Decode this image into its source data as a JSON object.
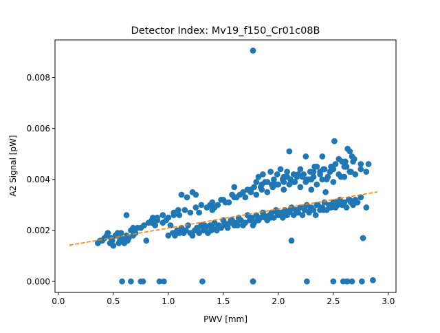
{
  "colors": {
    "points": "#1f77b4",
    "fit_line": "#ff7f0e",
    "axes": "#000000",
    "background": "#ffffff"
  },
  "chart_data": {
    "type": "scatter",
    "title": "Detector Index: Mv19_f150_Cr01c08B",
    "xlabel": "PWV [mm]",
    "ylabel": "A2 Signal [pW]",
    "xlim": [
      -0.03,
      3.07
    ],
    "ylim": [
      -0.00043,
      0.00947
    ],
    "x_ticks": [
      0.0,
      0.5,
      1.0,
      1.5,
      2.0,
      2.5,
      3.0
    ],
    "x_tick_labels": [
      "0.0",
      "0.5",
      "1.0",
      "1.5",
      "2.0",
      "2.5",
      "3.0"
    ],
    "y_ticks": [
      0.0,
      0.002,
      0.004,
      0.006,
      0.008
    ],
    "y_tick_labels": [
      "0.000",
      "0.002",
      "0.004",
      "0.006",
      "0.008"
    ],
    "grid": false,
    "series": [
      {
        "name": "A2 signal",
        "kind": "scatter",
        "x": [
          0.36,
          0.38,
          0.42,
          0.44,
          0.47,
          0.49,
          0.52,
          0.54,
          0.56,
          0.58,
          0.6,
          0.62,
          0.64,
          0.66,
          0.68,
          0.7,
          0.72,
          0.45,
          0.5,
          0.55,
          0.63,
          0.4,
          0.48,
          0.57,
          0.53,
          0.61,
          0.75,
          0.78,
          0.82,
          0.85,
          0.88,
          0.9,
          0.95,
          0.98,
          1.02,
          1.04,
          1.06,
          1.08,
          1.1,
          1.12,
          1.14,
          1.16,
          1.18,
          1.2,
          1.22,
          1.24,
          1.26,
          1.28,
          1.3,
          1.32,
          1.34,
          1.36,
          1.38,
          1.4,
          1.42,
          1.44,
          1.46,
          1.48,
          1.5,
          1.52,
          1.54,
          1.56,
          1.58,
          1.6,
          1.62,
          1.64,
          1.66,
          1.68,
          1.7,
          1.72,
          1.74,
          1.76,
          1.78,
          1.8,
          1.82,
          1.84,
          1.86,
          1.88,
          1.9,
          1.92,
          1.94,
          1.96,
          1.98,
          2.0,
          2.02,
          2.04,
          2.06,
          2.08,
          2.1,
          2.12,
          2.14,
          2.16,
          2.18,
          2.2,
          2.22,
          2.24,
          2.26,
          2.28,
          2.3,
          2.32,
          2.34,
          2.36,
          2.38,
          2.4,
          2.42,
          2.44,
          2.46,
          2.48,
          2.5,
          2.52,
          2.54,
          2.56,
          2.58,
          2.6,
          2.62,
          2.64,
          2.66,
          2.68,
          2.7,
          2.72,
          2.75,
          2.8,
          1.15,
          1.21,
          1.27,
          1.33,
          1.39,
          1.45,
          1.51,
          1.57,
          1.63,
          1.69,
          1.75,
          1.81,
          1.87,
          1.93,
          1.99,
          2.05,
          2.11,
          2.17,
          2.23,
          2.29,
          2.35,
          2.41,
          2.47,
          2.53,
          2.59,
          2.65,
          2.71,
          0.85,
          0.9,
          0.95,
          1.0,
          1.05,
          1.1,
          1.15,
          1.2,
          1.25,
          1.3,
          1.35,
          1.4,
          1.45,
          1.5,
          1.55,
          1.6,
          1.65,
          1.7,
          1.75,
          1.8,
          1.85,
          1.9,
          1.95,
          2.0,
          2.05,
          2.1,
          2.15,
          2.2,
          2.25,
          2.3,
          2.35,
          2.4,
          2.45,
          2.5,
          2.55,
          2.6,
          2.65,
          2.7,
          2.75,
          2.8,
          1.8,
          1.82,
          1.86,
          1.9,
          1.93,
          1.96,
          1.99,
          2.02,
          2.05,
          2.08,
          2.11,
          2.14,
          2.17,
          2.2,
          2.23,
          2.26,
          2.29,
          2.32,
          2.35,
          2.38,
          2.41,
          2.44,
          2.47,
          1.12,
          1.17,
          1.22,
          1.42,
          1.52,
          1.62,
          1.72,
          1.84,
          1.94,
          2.04,
          2.14,
          2.22,
          2.32,
          2.42,
          2.52,
          2.62,
          2.68,
          2.75,
          1.05,
          1.09,
          1.28,
          1.38,
          1.48,
          1.58,
          1.68,
          1.78,
          1.88,
          1.98,
          2.08,
          2.18,
          2.28,
          2.38,
          2.48,
          2.58,
          2.1,
          2.25,
          2.33,
          2.4,
          2.51,
          2.55,
          2.6,
          2.63,
          2.65,
          2.67,
          2.69,
          2.82,
          2.5,
          2.61,
          2.66,
          0.62,
          0.68,
          0.8,
          0.86,
          1.0,
          1.25,
          1.4,
          1.6,
          1.75,
          1.85,
          1.95,
          2.05,
          2.3,
          2.43,
          2.57,
          2.77,
          2.12,
          1.77,
          0.58,
          0.66,
          0.75,
          0.77,
          0.92,
          0.96,
          1.31,
          1.77,
          1.77,
          1.77,
          1.77,
          2.26,
          2.5,
          2.59,
          2.62,
          2.63,
          2.67,
          2.76,
          2.86,
          1.77
        ],
        "y": [
          0.0015,
          0.0016,
          0.0017,
          0.0018,
          0.0015,
          0.0016,
          0.0018,
          0.0019,
          0.0016,
          0.0017,
          0.0015,
          0.0018,
          0.0017,
          0.002,
          0.0018,
          0.0019,
          0.0021,
          0.0019,
          0.0014,
          0.0015,
          0.0016,
          0.0016,
          0.0017,
          0.0019,
          0.0018,
          0.0017,
          0.0021,
          0.0022,
          0.0023,
          0.0024,
          0.0022,
          0.0025,
          0.0023,
          0.0024,
          0.0022,
          0.0019,
          0.0018,
          0.002,
          0.0019,
          0.0021,
          0.0019,
          0.002,
          0.0022,
          0.0019,
          0.0018,
          0.002,
          0.0021,
          0.0019,
          0.0022,
          0.002,
          0.0021,
          0.0019,
          0.0022,
          0.0021,
          0.0023,
          0.002,
          0.0022,
          0.0021,
          0.0024,
          0.0022,
          0.0021,
          0.0023,
          0.0024,
          0.0022,
          0.0023,
          0.0025,
          0.0024,
          0.0022,
          0.0023,
          0.0026,
          0.0024,
          0.0025,
          0.0023,
          0.0026,
          0.0024,
          0.0025,
          0.0027,
          0.0025,
          0.0024,
          0.0026,
          0.0027,
          0.0025,
          0.0028,
          0.0026,
          0.0027,
          0.0025,
          0.0028,
          0.0026,
          0.0027,
          0.0029,
          0.0026,
          0.0028,
          0.0027,
          0.0029,
          0.0026,
          0.0028,
          0.003,
          0.0027,
          0.0029,
          0.0028,
          0.0026,
          0.003,
          0.0028,
          0.0029,
          0.0031,
          0.0028,
          0.003,
          0.0029,
          0.0031,
          0.0029,
          0.003,
          0.0032,
          0.003,
          0.0031,
          0.0029,
          0.0032,
          0.0031,
          0.003,
          0.0032,
          0.0031,
          0.0033,
          0.0029,
          0.002,
          0.0019,
          0.0021,
          0.0022,
          0.002,
          0.0021,
          0.0023,
          0.0024,
          0.0022,
          0.0023,
          0.0025,
          0.0024,
          0.0026,
          0.0025,
          0.0027,
          0.0026,
          0.0028,
          0.0027,
          0.0029,
          0.0028,
          0.003,
          0.0028,
          0.0029,
          0.0031,
          0.003,
          0.0032,
          0.0031,
          0.0023,
          0.0024,
          0.0026,
          0.0025,
          0.0027,
          0.0026,
          0.0028,
          0.0027,
          0.0029,
          0.003,
          0.0029,
          0.0031,
          0.003,
          0.0032,
          0.0031,
          0.0033,
          0.0034,
          0.0033,
          0.0035,
          0.0034,
          0.0036,
          0.0035,
          0.0037,
          0.0038,
          0.0036,
          0.0038,
          0.0039,
          0.0037,
          0.0039,
          0.004,
          0.0038,
          0.004,
          0.0041,
          0.0039,
          0.0042,
          0.0041,
          0.0043,
          0.0042,
          0.0044,
          0.0043,
          0.0039,
          0.0041,
          0.0042,
          0.0039,
          0.0043,
          0.004,
          0.0042,
          0.0044,
          0.0041,
          0.0043,
          0.004,
          0.0042,
          0.0041,
          0.0044,
          0.0042,
          0.004,
          0.0043,
          0.0041,
          0.0045,
          0.0042,
          0.0044,
          0.004,
          0.0043,
          0.0034,
          0.0033,
          0.0035,
          0.0029,
          0.0031,
          0.0033,
          0.0036,
          0.0037,
          0.0038,
          0.004,
          0.0039,
          0.0041,
          0.0043,
          0.0044,
          0.0046,
          0.0045,
          0.0047,
          0.0046,
          0.0026,
          0.0028,
          0.0027,
          0.003,
          0.0032,
          0.0034,
          0.0035,
          0.0037,
          0.0039,
          0.0038,
          0.0041,
          0.0042,
          0.004,
          0.0043,
          0.0045,
          0.0047,
          0.0051,
          0.0049,
          0.0045,
          0.0049,
          0.0055,
          0.0048,
          0.0045,
          0.0052,
          0.0051,
          0.0049,
          0.0048,
          0.0046,
          0.0044,
          0.0047,
          0.0043,
          0.0026,
          0.0021,
          0.0016,
          0.0025,
          0.0018,
          0.0034,
          0.0028,
          0.0037,
          0.0036,
          0.0038,
          0.0037,
          0.0039,
          0.0036,
          0.0035,
          0.0041,
          0.0017,
          0.0016,
          0.0022,
          0.0,
          0.0,
          0.0,
          0.0,
          0.0,
          0.0,
          0.0,
          0.0,
          0.0,
          0.0,
          0.0,
          0.0,
          0.0,
          0.0,
          0.0,
          0.0,
          0.0,
          0.0,
          5e-05,
          0.00905
        ]
      },
      {
        "name": "Linear fit",
        "kind": "line",
        "style": "dashed",
        "x": [
          0.1,
          2.9
        ],
        "y": [
          0.00142,
          0.00351
        ]
      }
    ]
  }
}
